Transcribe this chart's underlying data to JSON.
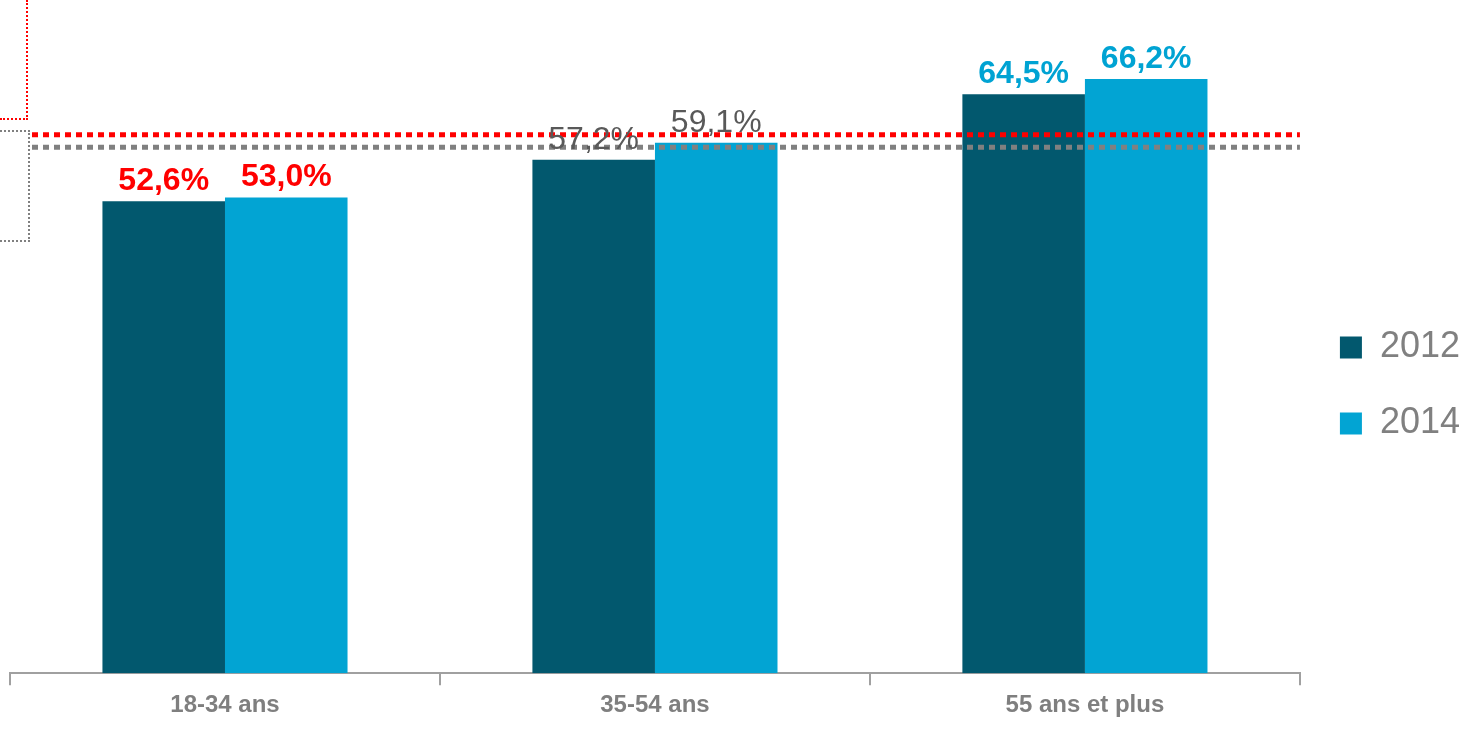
{
  "chart_data": {
    "type": "bar",
    "categories": [
      "18-34 ans",
      "35-54 ans",
      "55 ans et plus"
    ],
    "series": [
      {
        "name": "2012",
        "color": "#02586e",
        "values": [
          52.6,
          57.2,
          64.5
        ],
        "value_labels": [
          "52,6%",
          "57,2%",
          "64,5%"
        ]
      },
      {
        "name": "2014",
        "color": "#02a4d3",
        "values": [
          53.0,
          59.1,
          66.2
        ],
        "value_labels": [
          "53,0%",
          "59,1%",
          "66,2%"
        ]
      }
    ],
    "ref_lines": [
      {
        "axis": "y",
        "value": 60.0,
        "color": "#ff0000",
        "line_style": "dotted"
      },
      {
        "axis": "y",
        "value": 58.6,
        "color": "#808080",
        "line_style": "dotted"
      }
    ],
    "legend": "right",
    "grid": false
  }
}
